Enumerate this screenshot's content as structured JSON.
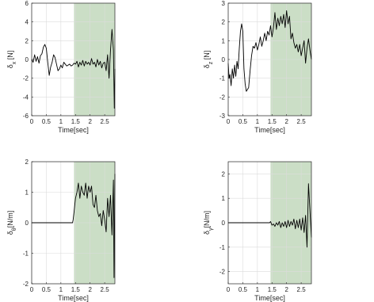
{
  "colors": {
    "shade": "#a8c8a0",
    "grid": "#dcdcdc",
    "line": "#000000",
    "axis": "#262626",
    "panel_bg": "#ffffff"
  },
  "chart_data": [
    {
      "type": "line",
      "xlabel": "Time[sec]",
      "ylabel_main": "δ",
      "ylabel_sub": "x",
      "ylabel_unit": " [N]",
      "xlim": [
        0,
        2.85
      ],
      "ylim": [
        -6,
        6
      ],
      "xticks": [
        0,
        0.5,
        1,
        1.5,
        2,
        2.5
      ],
      "yticks": [
        -6,
        -4,
        -2,
        0,
        2,
        4,
        6
      ],
      "grid": true,
      "shade": [
        1.45,
        2.85
      ],
      "series": [
        {
          "x": [
            0,
            0.05,
            0.1,
            0.15,
            0.2,
            0.25,
            0.3,
            0.35,
            0.4,
            0.45,
            0.5,
            0.55,
            0.6,
            0.65,
            0.7,
            0.75,
            0.8,
            0.85,
            0.9,
            0.95,
            1.0,
            1.05,
            1.1,
            1.15,
            1.2,
            1.25,
            1.3,
            1.35,
            1.4,
            1.45,
            1.5,
            1.55,
            1.6,
            1.65,
            1.7,
            1.75,
            1.8,
            1.85,
            1.9,
            1.95,
            2.0,
            2.05,
            2.1,
            2.15,
            2.2,
            2.25,
            2.3,
            2.35,
            2.4,
            2.45,
            2.5,
            2.55,
            2.6,
            2.65,
            2.7,
            2.75,
            2.8,
            2.83,
            2.85
          ],
          "y": [
            0.0,
            -0.3,
            0.5,
            -0.2,
            0.3,
            -0.4,
            0.4,
            0.6,
            1.3,
            1.6,
            1.2,
            -0.3,
            -1.7,
            -0.8,
            -0.3,
            0.5,
            0.2,
            -0.5,
            -1.2,
            -1.0,
            -0.6,
            -0.9,
            -0.3,
            -0.5,
            -0.7,
            -0.6,
            -0.5,
            -0.7,
            -0.6,
            -0.4,
            -0.5,
            -0.2,
            -0.8,
            -0.3,
            -0.6,
            -0.1,
            -0.7,
            -0.2,
            -0.5,
            -0.3,
            -0.6,
            0.1,
            -0.5,
            -0.3,
            -0.8,
            0.0,
            -0.6,
            -0.2,
            -0.9,
            -0.4,
            -0.3,
            -1.2,
            0.5,
            -2.0,
            1.0,
            3.2,
            1.0,
            -5.2,
            -1.0
          ]
        }
      ]
    },
    {
      "type": "line",
      "xlabel": "Time[sec]",
      "ylabel_main": "δ",
      "ylabel_sub": "z",
      "ylabel_unit": " [N]",
      "xlim": [
        0,
        2.85
      ],
      "ylim": [
        -3,
        3
      ],
      "xticks": [
        0,
        0.5,
        1,
        1.5,
        2,
        2.5
      ],
      "yticks": [
        -3,
        -2,
        -1,
        0,
        1,
        2,
        3
      ],
      "grid": true,
      "shade": [
        1.45,
        2.85
      ],
      "series": [
        {
          "x": [
            0,
            0.03,
            0.06,
            0.1,
            0.14,
            0.18,
            0.22,
            0.26,
            0.3,
            0.34,
            0.38,
            0.42,
            0.46,
            0.5,
            0.54,
            0.58,
            0.62,
            0.66,
            0.7,
            0.75,
            0.8,
            0.85,
            0.9,
            0.95,
            1.0,
            1.05,
            1.1,
            1.15,
            1.2,
            1.25,
            1.3,
            1.35,
            1.4,
            1.45,
            1.5,
            1.55,
            1.6,
            1.65,
            1.7,
            1.75,
            1.8,
            1.85,
            1.9,
            1.95,
            2.0,
            2.05,
            2.1,
            2.15,
            2.2,
            2.25,
            2.3,
            2.35,
            2.4,
            2.45,
            2.5,
            2.55,
            2.6,
            2.65,
            2.7,
            2.75,
            2.8,
            2.85
          ],
          "y": [
            -0.2,
            -1.0,
            -0.8,
            -1.4,
            -0.5,
            -1.0,
            -0.3,
            -0.9,
            -0.1,
            -0.5,
            0.6,
            1.5,
            1.9,
            1.5,
            -0.5,
            -1.3,
            -1.7,
            -1.6,
            -1.5,
            -0.6,
            0.2,
            0.7,
            0.6,
            0.9,
            0.5,
            0.8,
            1.2,
            0.7,
            1.0,
            1.4,
            1.0,
            1.5,
            1.3,
            1.8,
            1.2,
            1.7,
            2.5,
            1.6,
            2.2,
            1.8,
            2.3,
            1.9,
            2.4,
            1.7,
            2.6,
            1.9,
            2.3,
            1.1,
            1.4,
            0.9,
            0.6,
            0.8,
            0.4,
            0.8,
            0.2,
            0.6,
            1.0,
            -0.2,
            0.6,
            1.1,
            0.5,
            0.0
          ]
        }
      ]
    },
    {
      "type": "line",
      "xlabel": "Time[sec]",
      "ylabel_main": "δ",
      "ylabel_sub": "θ",
      "ylabel_unit": "[N/m]",
      "xlim": [
        0,
        2.85
      ],
      "ylim": [
        -2,
        2
      ],
      "xticks": [
        0,
        0.5,
        1,
        1.5,
        2,
        2.5
      ],
      "yticks": [
        -2,
        -1,
        0,
        1,
        2
      ],
      "grid": true,
      "shade": [
        1.45,
        2.85
      ],
      "series": [
        {
          "x": [
            0,
            1.4,
            1.42,
            1.45,
            1.5,
            1.55,
            1.6,
            1.65,
            1.7,
            1.75,
            1.8,
            1.85,
            1.9,
            1.95,
            2.0,
            2.05,
            2.1,
            2.15,
            2.2,
            2.25,
            2.3,
            2.35,
            2.4,
            2.45,
            2.5,
            2.55,
            2.6,
            2.65,
            2.7,
            2.75,
            2.8,
            2.82,
            2.85
          ],
          "y": [
            0,
            0,
            0.1,
            0.35,
            0.8,
            1.0,
            1.3,
            0.8,
            1.2,
            1.0,
            0.9,
            1.3,
            0.8,
            1.2,
            1.0,
            1.2,
            0.6,
            0.5,
            0.9,
            0.4,
            0.2,
            0.3,
            -0.1,
            0.4,
            0.1,
            -0.3,
            0.8,
            0.2,
            0.9,
            -0.4,
            1.4,
            -1.8,
            1.6
          ]
        }
      ]
    },
    {
      "type": "line",
      "xlabel": "Time[sec]",
      "ylabel_main": "δ",
      "ylabel_sub": "γ",
      "ylabel_unit": "[N/m]",
      "xlim": [
        0,
        2.85
      ],
      "ylim": [
        -2.5,
        2.5
      ],
      "xticks": [
        0,
        0.5,
        1,
        1.5,
        2,
        2.5
      ],
      "yticks": [
        -2,
        -1,
        0,
        1,
        2
      ],
      "grid": true,
      "shade": [
        1.45,
        2.85
      ],
      "series": [
        {
          "x": [
            0,
            1.42,
            1.45,
            1.5,
            1.55,
            1.6,
            1.65,
            1.7,
            1.75,
            1.8,
            1.85,
            1.9,
            1.95,
            2.0,
            2.05,
            2.1,
            2.15,
            2.2,
            2.25,
            2.3,
            2.35,
            2.4,
            2.45,
            2.5,
            2.55,
            2.6,
            2.65,
            2.7,
            2.75,
            2.8,
            2.85
          ],
          "y": [
            0,
            0,
            0.05,
            -0.1,
            -0.05,
            -0.15,
            0.0,
            -0.1,
            0.05,
            -0.2,
            0.0,
            -0.15,
            0.05,
            -0.2,
            0.1,
            -0.15,
            0.05,
            -0.1,
            0.15,
            -0.25,
            0.1,
            -0.2,
            0.15,
            -0.3,
            0.2,
            -0.4,
            0.3,
            -1.0,
            1.6,
            0.5,
            -0.6
          ]
        }
      ]
    }
  ]
}
